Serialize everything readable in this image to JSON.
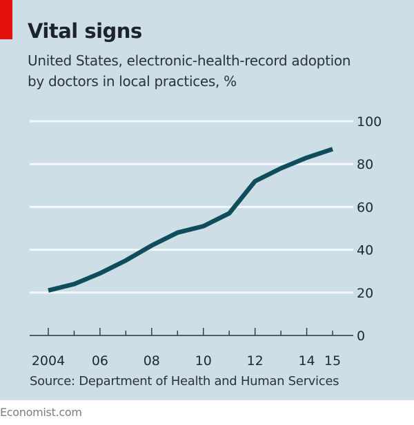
{
  "header": {
    "title": "Vital signs",
    "subtitle_lines": [
      "United States, electronic-health-record adoption",
      "by doctors in local practices, %"
    ]
  },
  "footer": {
    "source": "Source: Department of Health and Human Services",
    "brand": "Economist.com"
  },
  "colors": {
    "background": "#cddee6",
    "line": "#0f4c5c",
    "grid": "#f4f8fa",
    "accent": "#e3120b"
  },
  "chart_data": {
    "type": "line",
    "title": "Vital signs",
    "subtitle": "United States, electronic-health-record adoption by doctors in local practices, %",
    "xlabel": "",
    "ylabel": "%",
    "x": [
      2004,
      2005,
      2006,
      2007,
      2008,
      2009,
      2010,
      2011,
      2012,
      2013,
      2014,
      2015
    ],
    "series": [
      {
        "name": "EHR adoption",
        "values": [
          21,
          24,
          29,
          35,
          42,
          48,
          51,
          57,
          72,
          78,
          83,
          87
        ]
      }
    ],
    "xlim": [
      2004,
      2015
    ],
    "ylim": [
      0,
      100
    ],
    "y_ticks": [
      0,
      20,
      40,
      60,
      80,
      100
    ],
    "y_tick_labels": [
      "0",
      "20",
      "40",
      "60",
      "80",
      "100"
    ],
    "x_ticks": [
      2004,
      2005,
      2006,
      2007,
      2008,
      2009,
      2010,
      2011,
      2012,
      2013,
      2014,
      2015
    ],
    "x_tick_labels": [
      {
        "year": 2004,
        "label": "2004"
      },
      {
        "year": 2006,
        "label": "06"
      },
      {
        "year": 2008,
        "label": "08"
      },
      {
        "year": 2010,
        "label": "10"
      },
      {
        "year": 2012,
        "label": "12"
      },
      {
        "year": 2014,
        "label": "14"
      },
      {
        "year": 2015,
        "label": "15"
      }
    ],
    "grid": true,
    "y_axis_side": "right",
    "source": "Department of Health and Human Services"
  }
}
